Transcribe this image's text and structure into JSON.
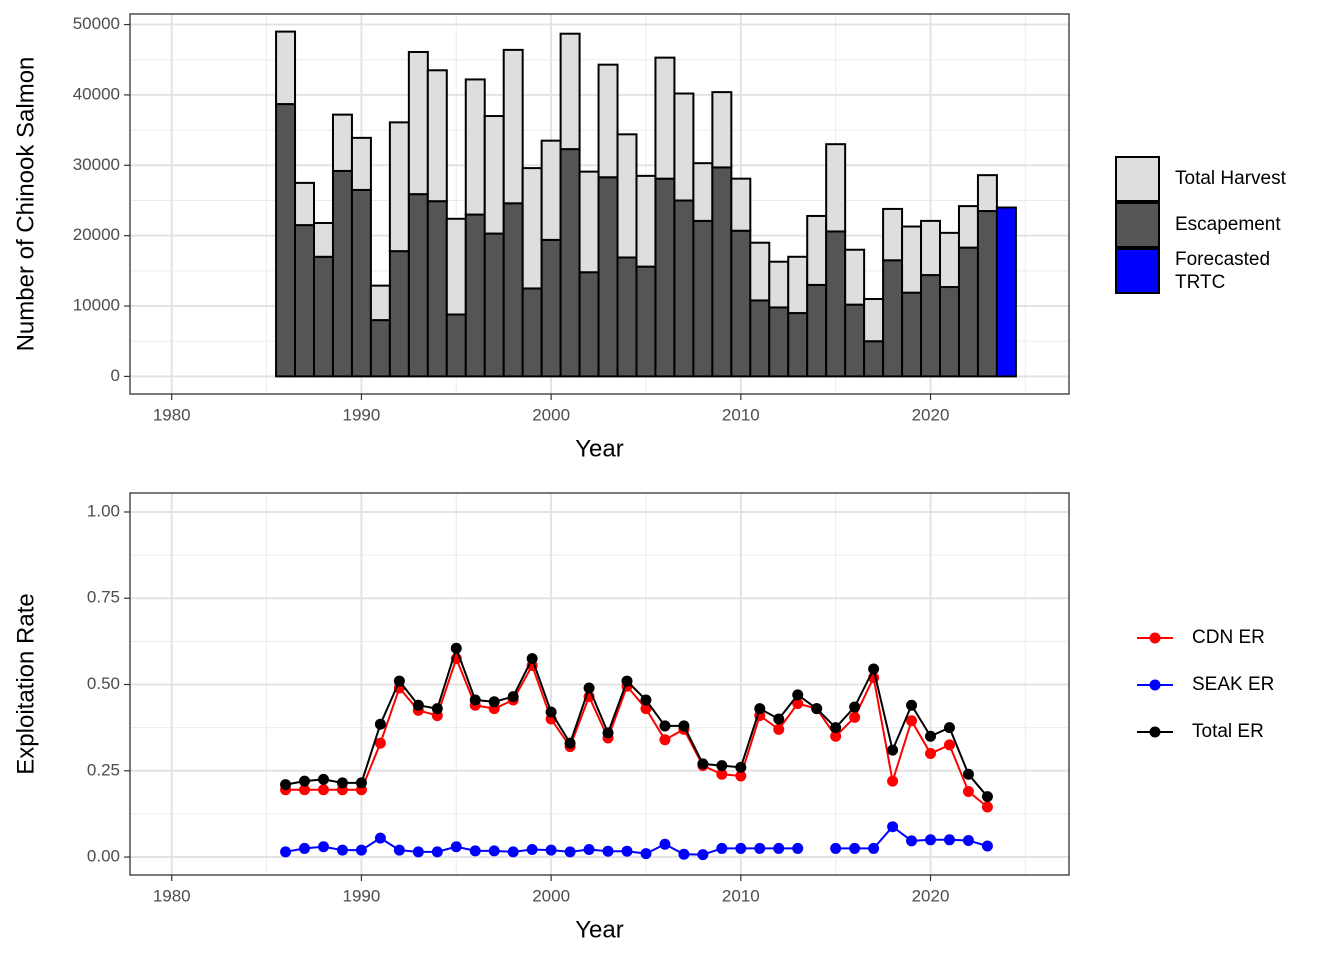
{
  "chart_data": [
    {
      "type": "bar",
      "ylabel": "Number of Chinook Salmon",
      "xlabel": "Year",
      "x": [
        1986,
        1987,
        1988,
        1989,
        1990,
        1991,
        1992,
        1993,
        1994,
        1995,
        1996,
        1997,
        1998,
        1999,
        2000,
        2001,
        2002,
        2003,
        2004,
        2005,
        2006,
        2007,
        2008,
        2009,
        2010,
        2011,
        2012,
        2013,
        2014,
        2015,
        2016,
        2017,
        2018,
        2019,
        2020,
        2021,
        2022,
        2023,
        2024
      ],
      "series": [
        {
          "name": "Total Harvest",
          "color": "#dedede",
          "values": [
            10300,
            6000,
            4800,
            8000,
            7400,
            4900,
            18300,
            20200,
            18600,
            13600,
            19200,
            16700,
            21800,
            17100,
            14100,
            16400,
            14300,
            16000,
            17500,
            12900,
            17200,
            15200,
            8200,
            10700,
            7400,
            8200,
            6500,
            8000,
            9800,
            12400,
            7800,
            6000,
            7300,
            9400,
            7700,
            7700,
            5900,
            5100,
            null
          ]
        },
        {
          "name": "Escapement",
          "color": "#555555",
          "values": [
            38700,
            21500,
            17000,
            29200,
            26500,
            8000,
            17800,
            25900,
            24900,
            8800,
            23000,
            20300,
            24600,
            12500,
            19400,
            32300,
            14800,
            28300,
            16900,
            15600,
            28100,
            25000,
            22100,
            29700,
            20700,
            10800,
            9800,
            9000,
            13000,
            20600,
            10200,
            5000,
            16500,
            11900,
            14400,
            12700,
            18300,
            23500,
            null
          ]
        },
        {
          "name": "Forecasted TRTC",
          "color": "#0000ff",
          "values": [
            null,
            null,
            null,
            null,
            null,
            null,
            null,
            null,
            null,
            null,
            null,
            null,
            null,
            null,
            null,
            null,
            null,
            null,
            null,
            null,
            null,
            null,
            null,
            null,
            null,
            null,
            null,
            null,
            null,
            null,
            null,
            null,
            null,
            null,
            null,
            null,
            null,
            null,
            24000
          ]
        }
      ],
      "xlim": [
        1977.8,
        2027.3
      ],
      "xticks": [
        1980,
        1990,
        2000,
        2010,
        2020
      ],
      "ylim": [
        -2500,
        51500
      ],
      "yticks": [
        0,
        10000,
        20000,
        30000,
        40000,
        50000
      ],
      "grid": true,
      "legend": "right"
    },
    {
      "type": "line",
      "ylabel": "Exploitation Rate",
      "xlabel": "Year",
      "x": [
        1986,
        1987,
        1988,
        1989,
        1990,
        1991,
        1992,
        1993,
        1994,
        1995,
        1996,
        1997,
        1998,
        1999,
        2000,
        2001,
        2002,
        2003,
        2004,
        2005,
        2006,
        2007,
        2008,
        2009,
        2010,
        2011,
        2012,
        2013,
        2014,
        2015,
        2016,
        2017,
        2018,
        2019,
        2020,
        2021,
        2022,
        2023
      ],
      "series": [
        {
          "name": "CDN ER",
          "color": "#ff0000",
          "values": [
            0.195,
            0.195,
            0.195,
            0.195,
            0.195,
            0.33,
            0.49,
            0.425,
            0.41,
            0.575,
            0.44,
            0.43,
            0.455,
            0.555,
            0.4,
            0.32,
            0.465,
            0.345,
            0.495,
            0.43,
            0.34,
            0.37,
            0.265,
            0.24,
            0.235,
            0.41,
            0.37,
            0.445,
            0.43,
            0.35,
            0.405,
            0.52,
            0.22,
            0.395,
            0.3,
            0.325,
            0.19,
            0.145
          ]
        },
        {
          "name": "SEAK ER",
          "color": "#0000ff",
          "values": [
            0.015,
            0.025,
            0.03,
            0.02,
            0.02,
            0.055,
            0.02,
            0.015,
            0.015,
            0.03,
            0.018,
            0.018,
            0.015,
            0.022,
            0.02,
            0.015,
            0.022,
            0.017,
            0.017,
            0.01,
            0.037,
            0.008,
            0.007,
            0.025,
            0.025,
            0.025,
            0.025,
            0.025,
            null,
            0.025,
            0.025,
            0.025,
            0.088,
            0.047,
            0.05,
            0.05,
            0.048,
            0.032
          ]
        },
        {
          "name": "Total ER",
          "color": "#000000",
          "values": [
            0.21,
            0.22,
            0.225,
            0.215,
            0.215,
            0.385,
            0.51,
            0.44,
            0.43,
            0.605,
            0.455,
            0.45,
            0.465,
            0.575,
            0.42,
            0.33,
            0.49,
            0.36,
            0.51,
            0.455,
            0.38,
            0.38,
            0.27,
            0.265,
            0.26,
            0.43,
            0.4,
            0.47,
            0.43,
            0.375,
            0.435,
            0.545,
            0.31,
            0.44,
            0.35,
            0.375,
            0.24,
            0.175
          ]
        }
      ],
      "xlim": [
        1977.8,
        2027.3
      ],
      "xticks": [
        1980,
        1990,
        2000,
        2010,
        2020
      ],
      "ylim": [
        -0.052,
        1.055
      ],
      "yticks": [
        {
          "value": 0,
          "label": "0.00"
        },
        {
          "value": 0.25,
          "label": "0.25"
        },
        {
          "value": 0.5,
          "label": "0.50"
        },
        {
          "value": 0.75,
          "label": "0.75"
        },
        {
          "value": 1,
          "label": "1.00"
        }
      ],
      "grid": true,
      "legend": "right"
    }
  ]
}
